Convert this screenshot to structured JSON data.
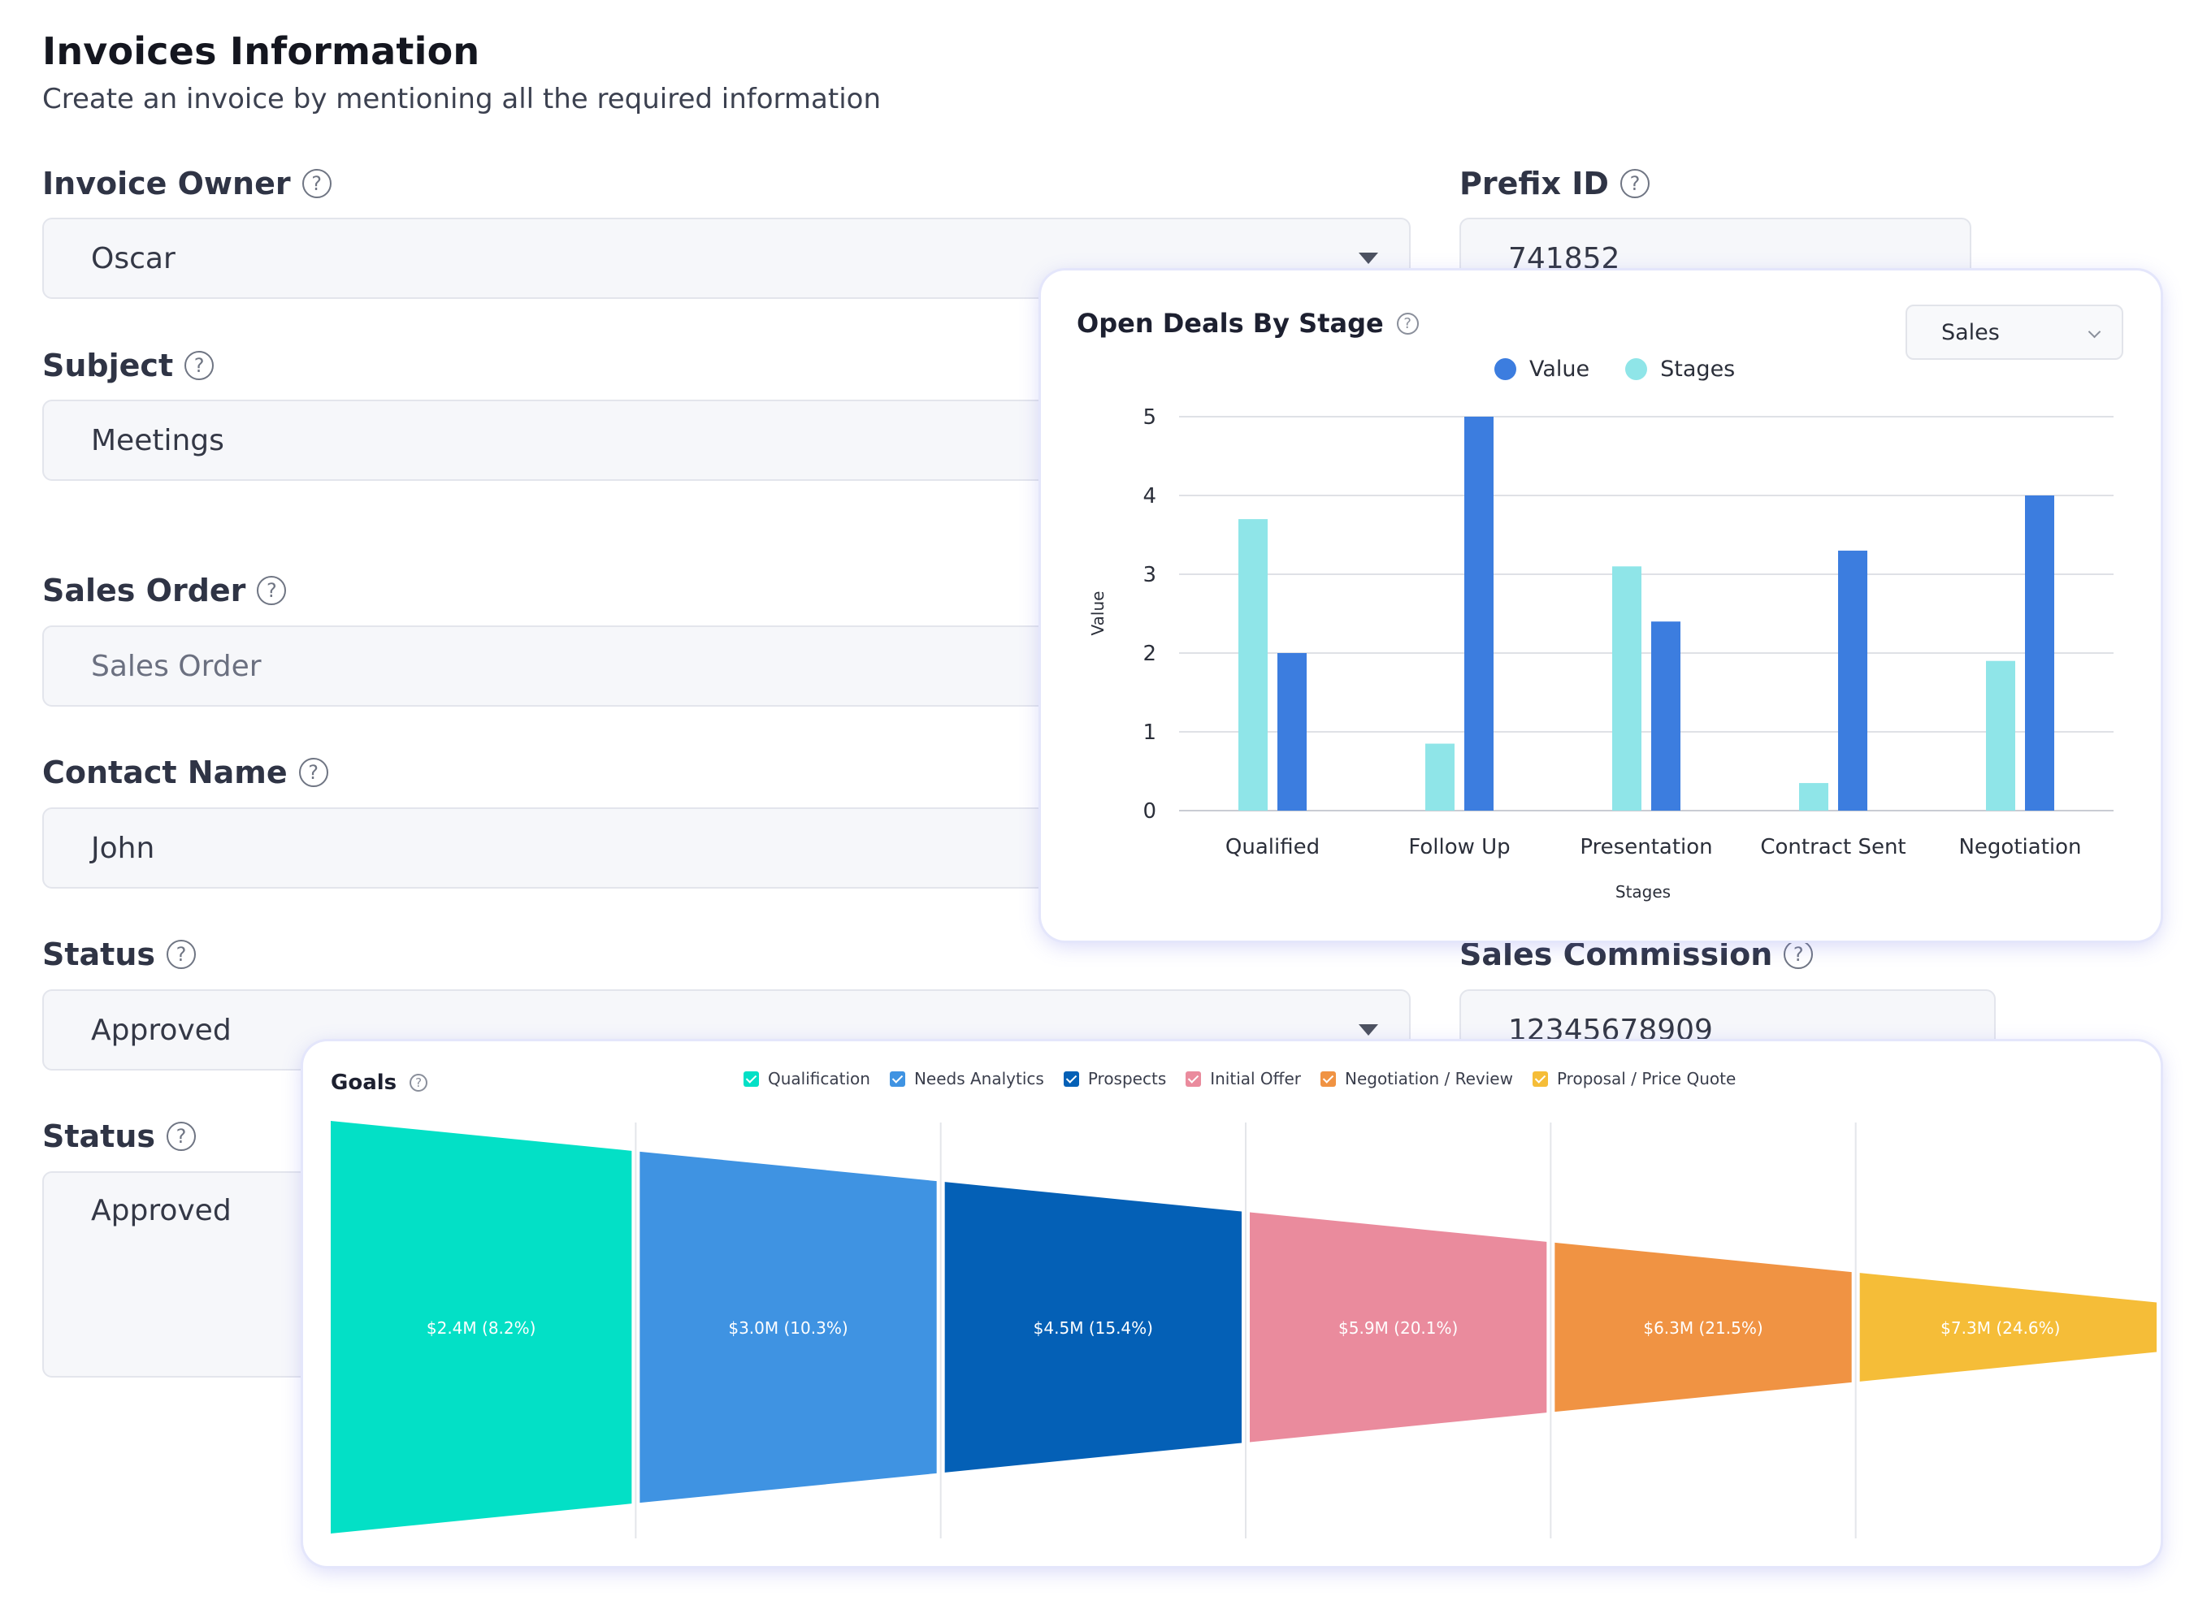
{
  "page": {
    "title": "Invoices Information",
    "subtitle": "Create an invoice by mentioning all the required information"
  },
  "form": {
    "invoice_owner": {
      "label": "Invoice Owner",
      "value": "Oscar"
    },
    "prefix_id": {
      "label": "Prefix ID",
      "value": "741852"
    },
    "subject": {
      "label": "Subject",
      "value": "Meetings"
    },
    "sales_order": {
      "label": "Sales Order",
      "placeholder": "Sales Order"
    },
    "contact_name": {
      "label": "Contact Name",
      "value": "John"
    },
    "status": {
      "label": "Status",
      "value": "Approved"
    },
    "sales_commission": {
      "label": "Sales Commission",
      "value": "12345678909"
    },
    "status2": {
      "label": "Status",
      "value": "Approved"
    }
  },
  "deals_card": {
    "title": "Open Deals By Stage",
    "filter_value": "Sales",
    "legend": [
      "Value",
      "Stages"
    ]
  },
  "goals_card": {
    "title": "Goals"
  },
  "icons": {
    "help": "question-circle-icon",
    "dropdown": "caret-down-icon",
    "chevron": "chevron-down-icon"
  },
  "colors": {
    "value": "#3c7ddf",
    "stages": "#8fe5e8",
    "qualification": "#03e0c6",
    "needs_analytics": "#3f93e2",
    "prospects": "#0460b6",
    "initial_offer": "#ea8b9d",
    "negotiation_review": "#f09343",
    "proposal_price_quote": "#f5bd38"
  },
  "chart_data": [
    {
      "type": "bar",
      "title": "Open Deals By Stage",
      "xlabel": "Stages",
      "ylabel": "Value",
      "categories": [
        "Qualified",
        "Follow Up",
        "Presentation",
        "Contract Sent",
        "Negotiation"
      ],
      "yticks": [
        0,
        1,
        2,
        3,
        4,
        5
      ],
      "ylim": [
        0,
        5
      ],
      "grid": true,
      "legend_position": "top",
      "series": [
        {
          "name": "Stages",
          "values": [
            3.7,
            0.85,
            3.1,
            0.35,
            1.9
          ]
        },
        {
          "name": "Value",
          "values": [
            2.0,
            5.0,
            2.4,
            3.3,
            4.0
          ]
        }
      ]
    },
    {
      "type": "funnel",
      "title": "Goals",
      "legend_position": "top",
      "grid": true,
      "stages": [
        {
          "name": "Qualification",
          "value": 2.4,
          "percent": 8.2,
          "label": "$2.4M (8.2%)"
        },
        {
          "name": "Needs Analytics",
          "value": 3.0,
          "percent": 10.3,
          "label": "$3.0M (10.3%)"
        },
        {
          "name": "Prospects",
          "value": 4.5,
          "percent": 15.4,
          "label": "$4.5M (15.4%)"
        },
        {
          "name": "Initial Offer",
          "value": 5.9,
          "percent": 20.1,
          "label": "$5.9M (20.1%)"
        },
        {
          "name": "Negotiation / Review",
          "value": 6.3,
          "percent": 21.5,
          "label": "$6.3M (21.5%)"
        },
        {
          "name": "Proposal / Price Quote",
          "value": 7.3,
          "percent": 24.6,
          "label": "$7.3M (24.6%)"
        }
      ]
    }
  ]
}
